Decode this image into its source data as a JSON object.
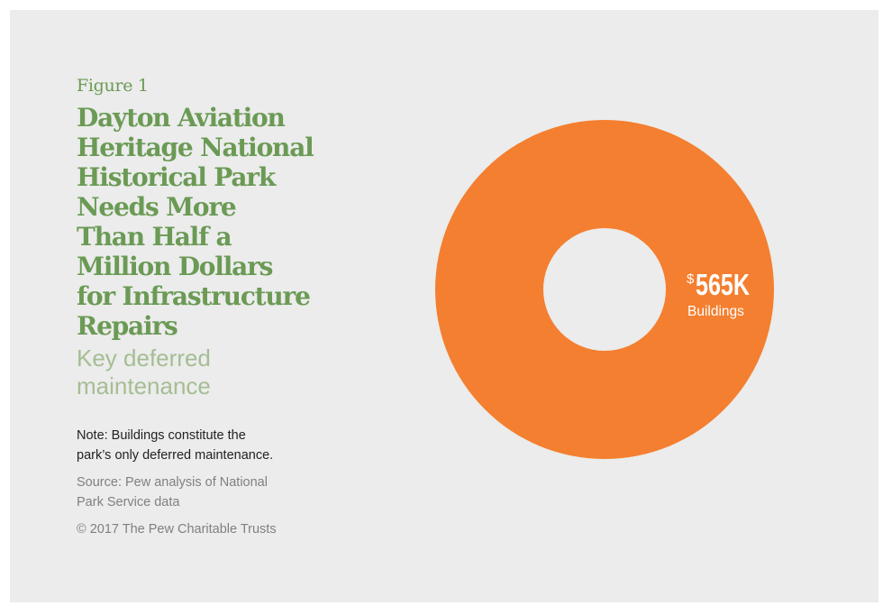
{
  "figure_label": "Figure 1",
  "title_lines": [
    "Dayton Aviation",
    "Heritage National",
    "Historical Park",
    "Needs More",
    "Than Half a",
    "Million Dollars",
    "for Infrastructure",
    "Repairs"
  ],
  "subtitle_lines": [
    "Key deferred",
    "maintenance"
  ],
  "note_lines": [
    "Note: Buildings constitute the",
    "park’s only deferred maintenance."
  ],
  "source_lines": [
    "Source: Pew analysis of National",
    "Park Service data"
  ],
  "copyright": "© 2017 The Pew Charitable Trusts",
  "colors": {
    "background": "#ebeceb",
    "title": "#6b9a55",
    "subtitle": "#a6bd94",
    "slice": "#f47f30",
    "label": "#ffffff"
  },
  "chart_data": {
    "type": "pie",
    "donut": true,
    "title": "Dayton Aviation Heritage National Historical Park Needs More Than Half a Million Dollars for Infrastructure Repairs",
    "subtitle": "Key deferred maintenance",
    "categories": [
      "Buildings"
    ],
    "values": [
      565
    ],
    "units": "thousands of dollars",
    "data_labels": [
      {
        "currency": "$",
        "amount": "565K",
        "category": "Buildings"
      }
    ]
  }
}
